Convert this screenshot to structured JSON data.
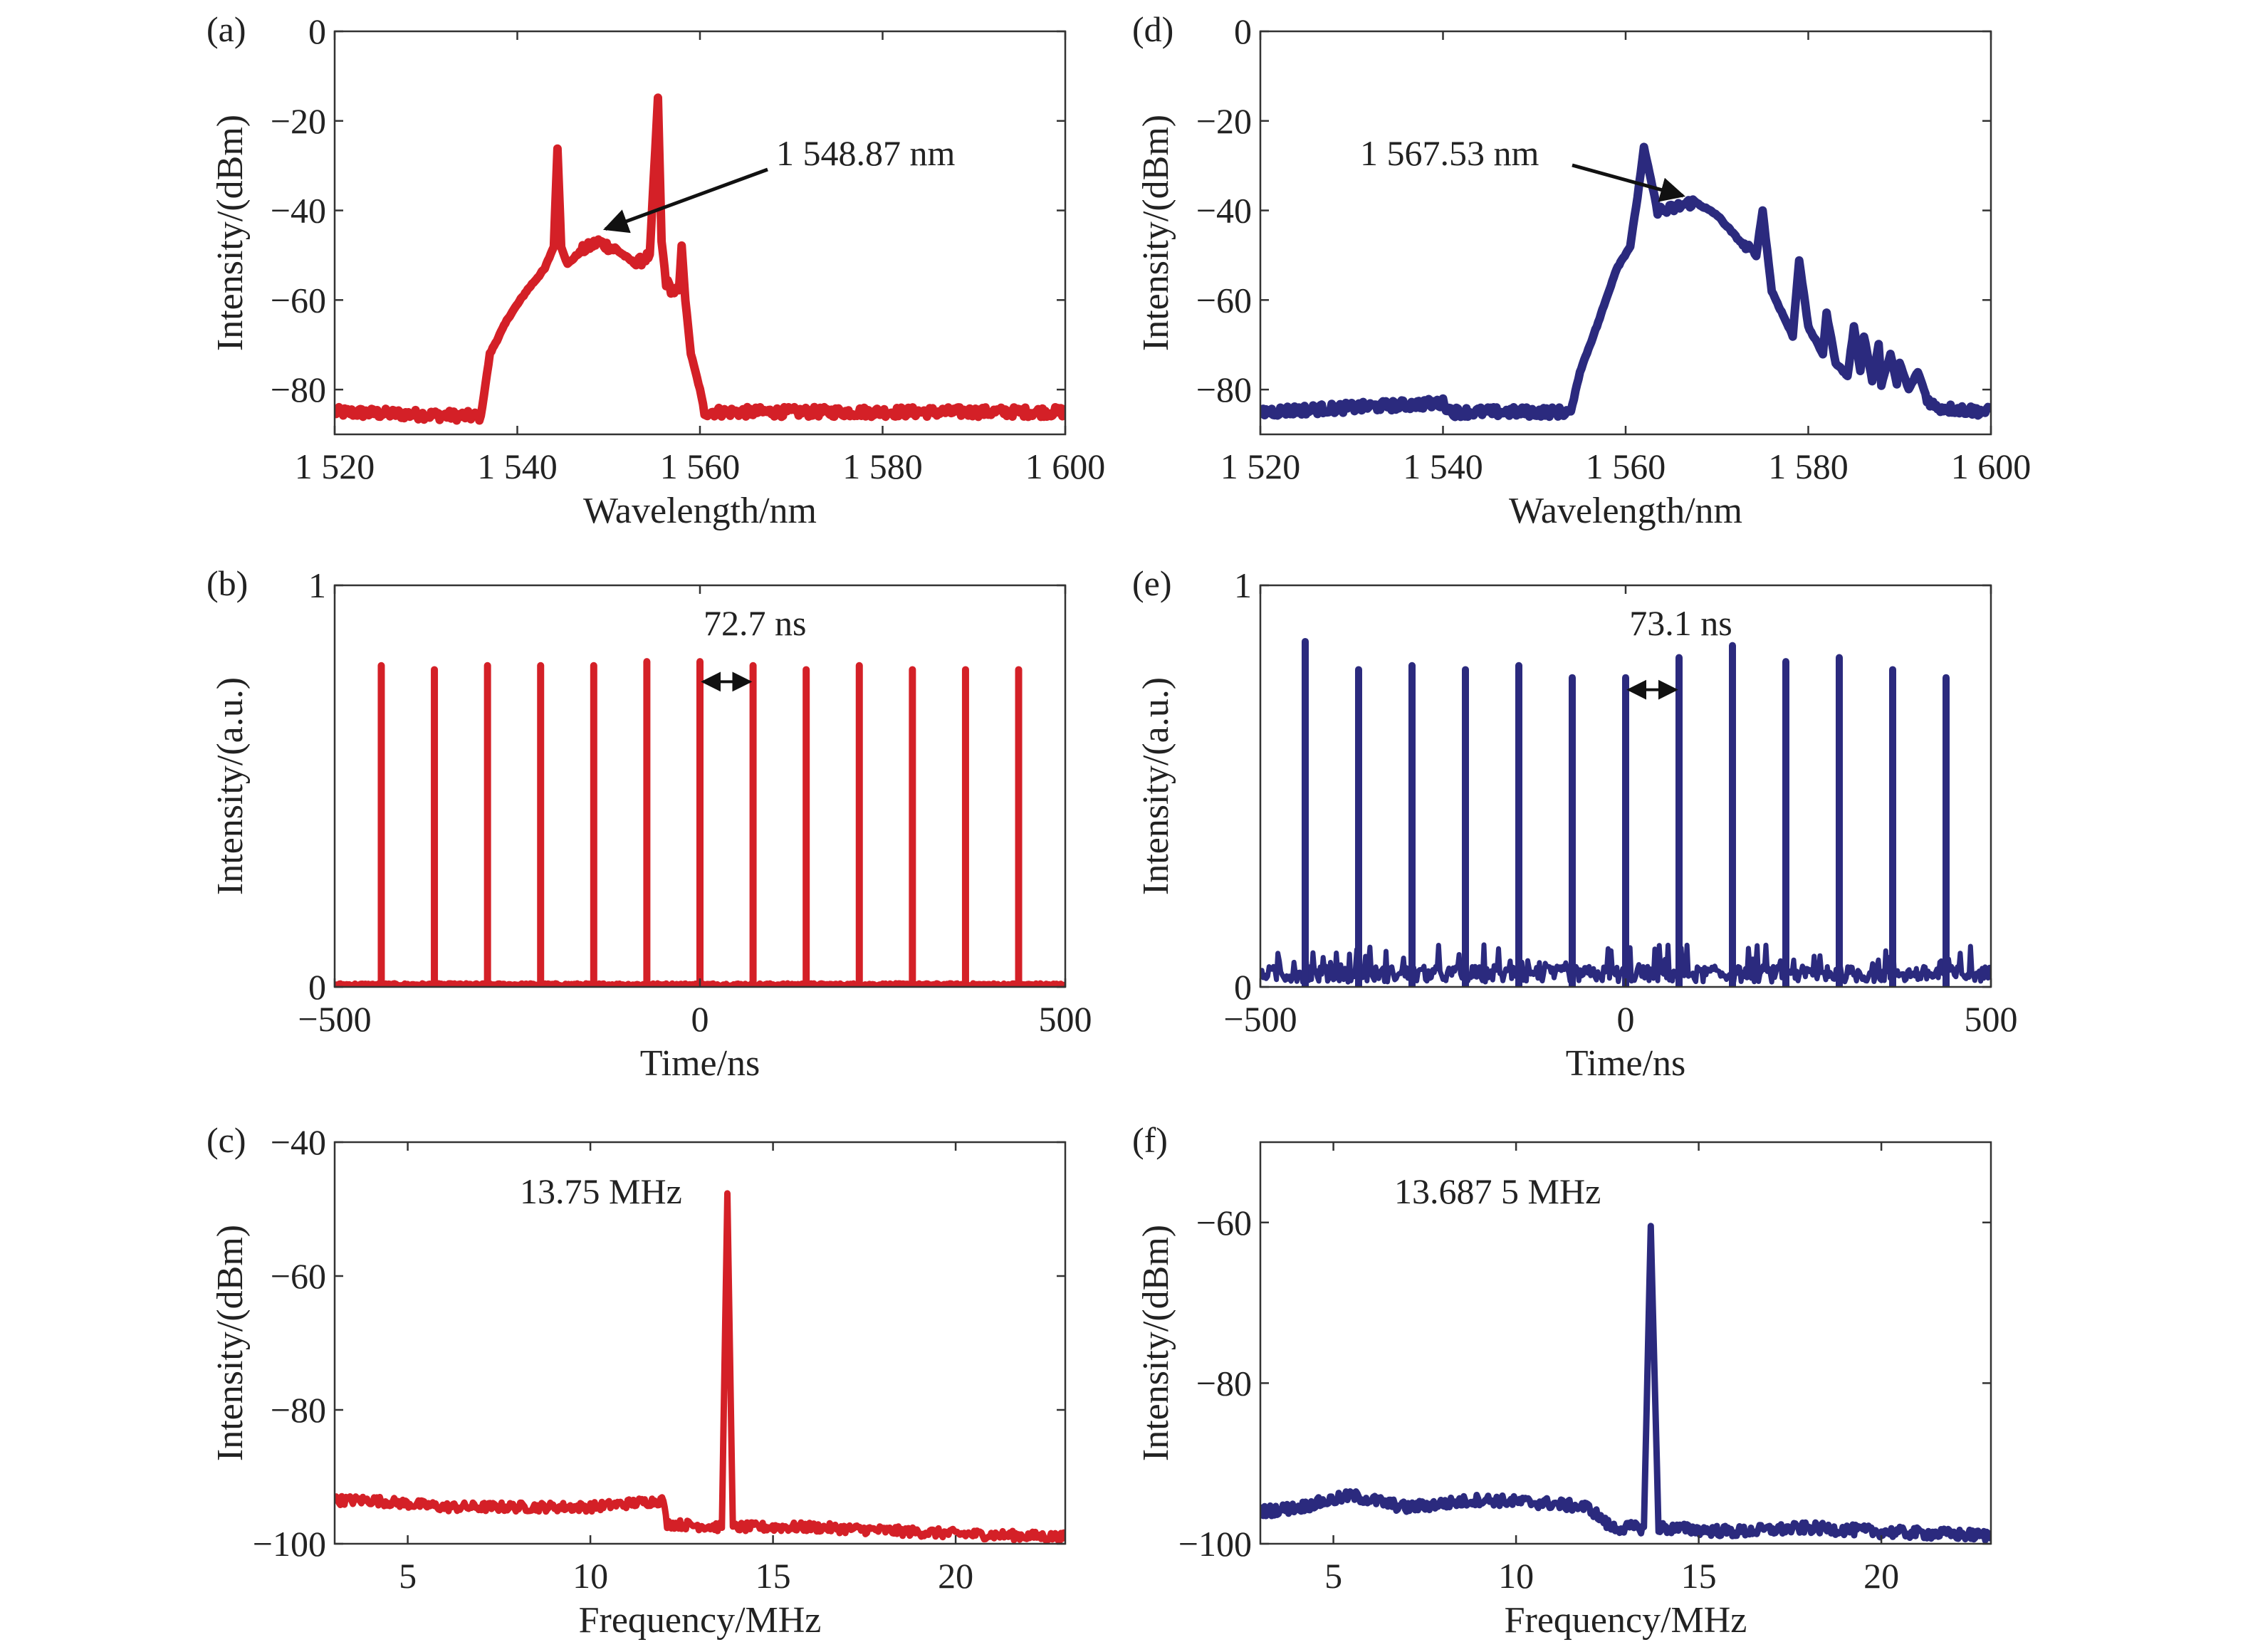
{
  "colors": {
    "red": "#d42027",
    "blue": "#2b2a7e",
    "axis": "#333333"
  },
  "chart_data": [
    {
      "id": "a",
      "panel_label": "(a)",
      "type": "line",
      "xlabel": "Wavelength/nm",
      "ylabel": "Intensity/(dBm)",
      "xlim": [
        1520,
        1600
      ],
      "ylim": [
        -90,
        0
      ],
      "xticks": [
        1520,
        1540,
        1560,
        1580,
        1600
      ],
      "xtick_labels": [
        "1 520",
        "1 540",
        "1 560",
        "1 580",
        "1 600"
      ],
      "yticks": [
        0,
        -20,
        -40,
        -60,
        -80
      ],
      "ytick_labels": [
        "0",
        "−20",
        "−40",
        "−60",
        "−80"
      ],
      "series": [
        {
          "color": "red",
          "x": [
            1520,
            1536,
            1537,
            1539,
            1541,
            1543,
            1544,
            1544.4,
            1544.8,
            1545.5,
            1547,
            1548.87,
            1551,
            1553,
            1554.5,
            1555.4,
            1555.8,
            1556.3,
            1557,
            1557.7,
            1558,
            1558.4,
            1559,
            1560,
            1560.5,
            1600
          ],
          "y": [
            -85,
            -86,
            -72,
            -64,
            -58,
            -53,
            -48,
            -26,
            -48,
            -52,
            -49,
            -47,
            -49,
            -52,
            -50,
            -15,
            -47,
            -56,
            -58,
            -58,
            -48,
            -60,
            -72,
            -80,
            -85,
            -85
          ]
        }
      ],
      "annotations": [
        {
          "text": "1 548.87 nm",
          "x": 1548.87,
          "y": -47
        }
      ]
    },
    {
      "id": "b",
      "panel_label": "(b)",
      "type": "line",
      "xlabel": "Time/ns",
      "ylabel": "Intensity/(a.u.)",
      "xlim": [
        -500,
        500
      ],
      "ylim": [
        0,
        1
      ],
      "xticks": [
        -500,
        0,
        500
      ],
      "xtick_labels": [
        "−500",
        "0",
        "500"
      ],
      "yticks": [
        0,
        1
      ],
      "ytick_labels": [
        "0",
        "1"
      ],
      "series": [
        {
          "color": "red",
          "pulses_x": [
            -436.2,
            -363.5,
            -290.8,
            -218.1,
            -145.4,
            -72.7,
            0,
            72.7,
            145.4,
            218.1,
            290.8,
            363.5,
            436.2
          ],
          "pulses_y": [
            0.8,
            0.79,
            0.8,
            0.8,
            0.8,
            0.81,
            0.81,
            0.8,
            0.79,
            0.8,
            0.79,
            0.79,
            0.79
          ],
          "baseline": 0.01
        }
      ],
      "annotations": [
        {
          "text": "72.7 ns",
          "x1": 0,
          "x2": 72.7,
          "y": 0.76
        }
      ]
    },
    {
      "id": "c",
      "panel_label": "(c)",
      "type": "line",
      "xlabel": "Frequency/MHz",
      "ylabel": "Intensity/(dBm)",
      "xlim": [
        3,
        23
      ],
      "ylim": [
        -100,
        -40
      ],
      "xticks": [
        5,
        10,
        15,
        20
      ],
      "xtick_labels": [
        "5",
        "10",
        "15",
        "20"
      ],
      "yticks": [
        -40,
        -60,
        -80,
        -100
      ],
      "ytick_labels": [
        "−40",
        "−60",
        "−80",
        "−100"
      ],
      "series": [
        {
          "color": "red",
          "x": [
            3,
            4,
            6,
            8,
            10,
            12,
            12.1,
            13.6,
            13.75,
            13.9,
            16,
            18,
            20,
            23
          ],
          "y": [
            -93.5,
            -93.5,
            -94.5,
            -94.5,
            -94.5,
            -93.5,
            -97,
            -97.5,
            -47.5,
            -97.5,
            -97.5,
            -98,
            -98.5,
            -99
          ],
          "peak": {
            "x": 13.75,
            "y": -47.5
          }
        }
      ],
      "annotations": [
        {
          "text": "13.75 MHz"
        }
      ]
    },
    {
      "id": "d",
      "panel_label": "(d)",
      "type": "line",
      "xlabel": "Wavelength/nm",
      "ylabel": "Intensity/(dBm)",
      "xlim": [
        1520,
        1600
      ],
      "ylim": [
        -90,
        0
      ],
      "xticks": [
        1520,
        1540,
        1560,
        1580,
        1600
      ],
      "xtick_labels": [
        "1 520",
        "1 540",
        "1 560",
        "1 580",
        "1 600"
      ],
      "yticks": [
        0,
        -20,
        -40,
        -60,
        -80
      ],
      "ytick_labels": [
        "0",
        "−20",
        "−40",
        "−60",
        "−80"
      ],
      "series": [
        {
          "color": "blue",
          "x": [
            1520,
            1540,
            1541,
            1554,
            1555,
            1557,
            1559,
            1560.5,
            1561.3,
            1562,
            1563.5,
            1564.5,
            1567.53,
            1570,
            1573,
            1574.3,
            1575,
            1576,
            1578.3,
            1579,
            1580,
            1581.6,
            1582,
            1583,
            1584.3,
            1585,
            1585.7,
            1586.1,
            1587,
            1587.7,
            1588,
            1589,
            1589.7,
            1590,
            1591,
            1592,
            1593,
            1594,
            1600
          ],
          "y": [
            -85,
            -83,
            -85,
            -85,
            -76,
            -65,
            -53,
            -48,
            -37,
            -26,
            -40,
            -40,
            -38,
            -41,
            -48,
            -50,
            -40,
            -58,
            -68,
            -51,
            -66,
            -72,
            -63,
            -74,
            -77,
            -66,
            -76,
            -68,
            -78,
            -70,
            -79,
            -72,
            -79,
            -74,
            -80,
            -76,
            -82,
            -84,
            -85
          ]
        }
      ],
      "annotations": [
        {
          "text": "1 567.53 nm",
          "x": 1567.53,
          "y": -38
        }
      ]
    },
    {
      "id": "e",
      "panel_label": "(e)",
      "type": "line",
      "xlabel": "Time/ns",
      "ylabel": "Intensity/(a.u.)",
      "xlim": [
        -500,
        500
      ],
      "ylim": [
        0,
        1
      ],
      "xticks": [
        -500,
        0,
        500
      ],
      "xtick_labels": [
        "−500",
        "0",
        "500"
      ],
      "yticks": [
        0,
        1
      ],
      "ytick_labels": [
        "0",
        "1"
      ],
      "series": [
        {
          "color": "blue",
          "pulses_x": [
            -438.6,
            -365.5,
            -292.4,
            -219.3,
            -146.2,
            -73.1,
            0,
            73.1,
            146.2,
            219.3,
            292.4,
            365.5,
            438.6
          ],
          "pulses_y": [
            0.86,
            0.79,
            0.8,
            0.79,
            0.8,
            0.77,
            0.77,
            0.82,
            0.85,
            0.81,
            0.82,
            0.79,
            0.77
          ],
          "baseline": 0.04
        }
      ],
      "annotations": [
        {
          "text": "73.1 ns",
          "x1": 0,
          "x2": 73.1,
          "y": 0.74
        }
      ]
    },
    {
      "id": "f",
      "panel_label": "(f)",
      "type": "line",
      "xlabel": "Frequency/MHz",
      "ylabel": "Intensity/(dBm)",
      "xlim": [
        3,
        23
      ],
      "ylim": [
        -100,
        -50
      ],
      "xticks": [
        5,
        10,
        15,
        20
      ],
      "xtick_labels": [
        "5",
        "10",
        "15",
        "20"
      ],
      "yticks": [
        -60,
        -80,
        -100
      ],
      "ytick_labels": [
        "−60",
        "−80",
        "−100"
      ],
      "series": [
        {
          "color": "blue",
          "x": [
            3,
            4,
            5.5,
            7,
            9,
            11,
            12,
            12.6,
            13.5,
            13.6875,
            13.9,
            16,
            18,
            20,
            23
          ],
          "y": [
            -96,
            -95.5,
            -94,
            -95.5,
            -94.5,
            -95,
            -95.5,
            -98,
            -98,
            -60.5,
            -98,
            -98.5,
            -98,
            -98.5,
            -99
          ]
        }
      ],
      "annotations": [
        {
          "text": "13.687 5 MHz"
        }
      ]
    }
  ]
}
